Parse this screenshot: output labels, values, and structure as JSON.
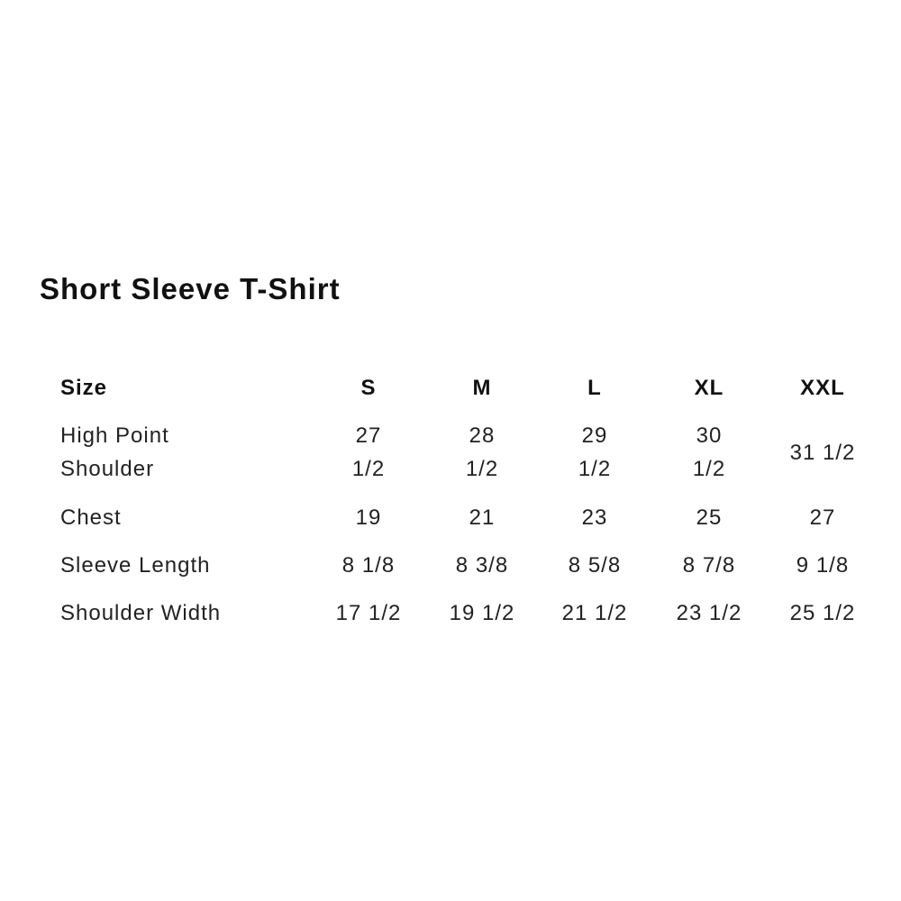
{
  "title": "Short Sleeve T-Shirt",
  "table": {
    "header": {
      "label": "Size",
      "sizes": [
        "S",
        "M",
        "L",
        "XL",
        "XXL"
      ]
    },
    "rows": [
      {
        "label_lines": [
          "High Point",
          "Shoulder"
        ],
        "values": [
          [
            "27",
            "1/2"
          ],
          [
            "28",
            "1/2"
          ],
          [
            "29",
            "1/2"
          ],
          [
            "30",
            "1/2"
          ],
          [
            "31 1/2"
          ]
        ]
      },
      {
        "label_lines": [
          "Chest"
        ],
        "values": [
          [
            "19"
          ],
          [
            "21"
          ],
          [
            "23"
          ],
          [
            "25"
          ],
          [
            "27"
          ]
        ]
      },
      {
        "label_lines": [
          "Sleeve Length"
        ],
        "values": [
          [
            "8 1/8"
          ],
          [
            "8 3/8"
          ],
          [
            "8 5/8"
          ],
          [
            "8 7/8"
          ],
          [
            "9 1/8"
          ]
        ]
      },
      {
        "label_lines": [
          "Shoulder Width"
        ],
        "values": [
          [
            "17 1/2"
          ],
          [
            "19 1/2"
          ],
          [
            "21 1/2"
          ],
          [
            "23 1/2"
          ],
          [
            "25 1/2"
          ]
        ]
      }
    ]
  }
}
